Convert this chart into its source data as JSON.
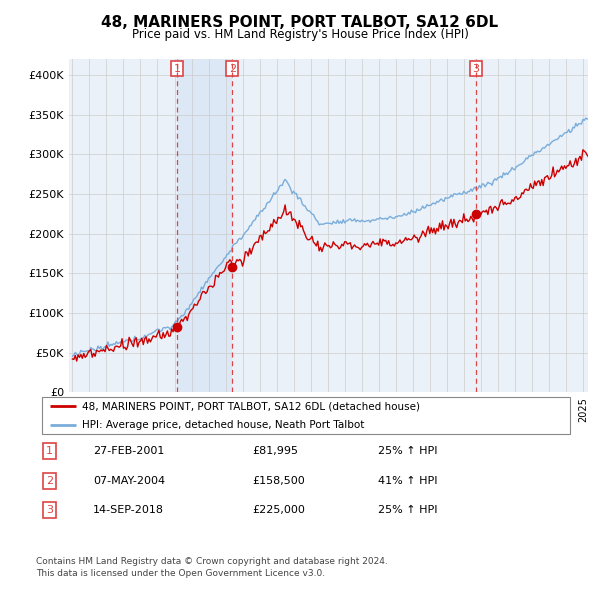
{
  "title": "48, MARINERS POINT, PORT TALBOT, SA12 6DL",
  "subtitle": "Price paid vs. HM Land Registry's House Price Index (HPI)",
  "legend_line1": "48, MARINERS POINT, PORT TALBOT, SA12 6DL (detached house)",
  "legend_line2": "HPI: Average price, detached house, Neath Port Talbot",
  "footer1": "Contains HM Land Registry data © Crown copyright and database right 2024.",
  "footer2": "This data is licensed under the Open Government Licence v3.0.",
  "transactions": [
    {
      "num": 1,
      "date": "27-FEB-2001",
      "price": "£81,995",
      "hpi": "25% ↑ HPI",
      "year": 2001.15
    },
    {
      "num": 2,
      "date": "07-MAY-2004",
      "price": "£158,500",
      "hpi": "41% ↑ HPI",
      "year": 2004.4
    },
    {
      "num": 3,
      "date": "14-SEP-2018",
      "price": "£225,000",
      "hpi": "25% ↑ HPI",
      "year": 2018.7
    }
  ],
  "transaction_prices": [
    81995,
    158500,
    225000
  ],
  "xlim": [
    1994.8,
    2025.3
  ],
  "ylim": [
    0,
    420000
  ],
  "yticks": [
    0,
    50000,
    100000,
    150000,
    200000,
    250000,
    300000,
    350000,
    400000
  ],
  "ytick_labels": [
    "£0",
    "£50K",
    "£100K",
    "£150K",
    "£200K",
    "£250K",
    "£300K",
    "£350K",
    "£400K"
  ],
  "red_color": "#cc0000",
  "blue_color": "#7aaddb",
  "shade_color": "#dce8f5",
  "vline_color": "#dd4444",
  "grid_color": "#cccccc",
  "bg_color": "#ffffff",
  "plot_bg": "#eaf1f8"
}
